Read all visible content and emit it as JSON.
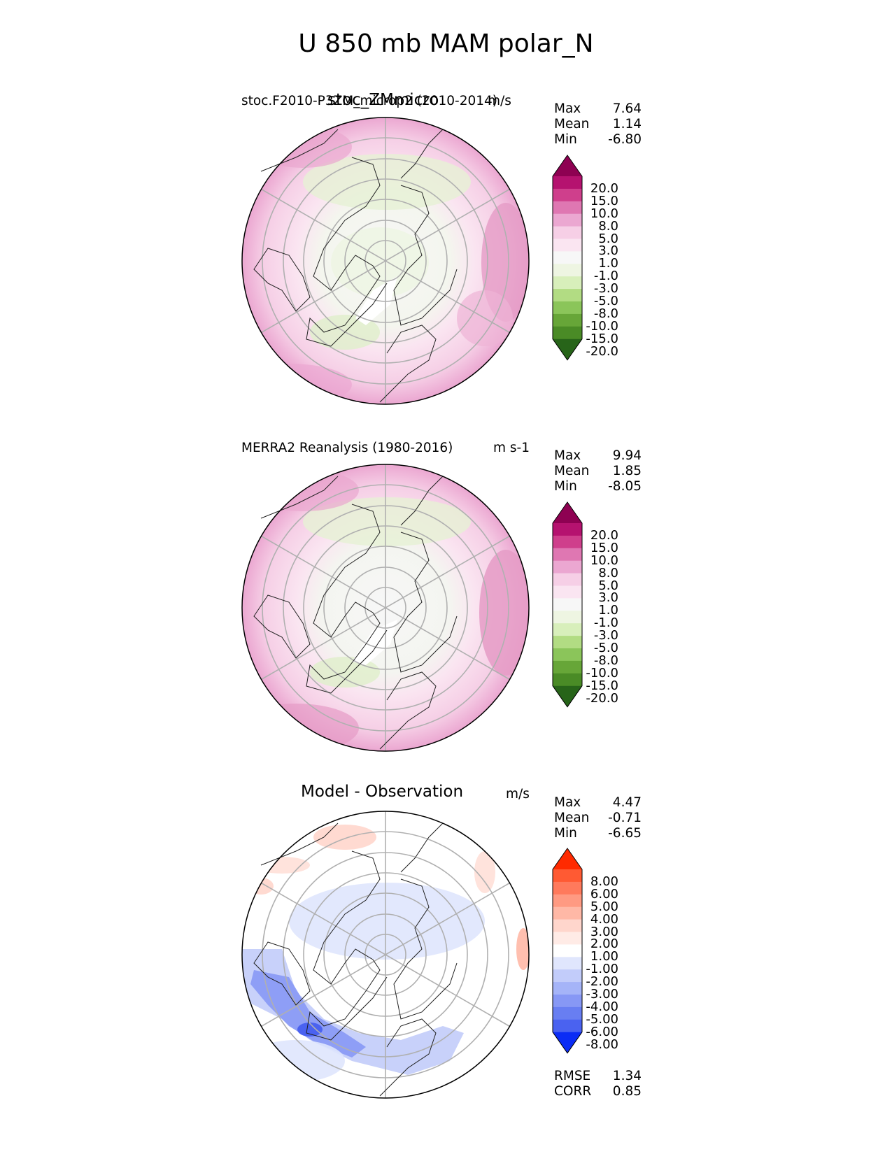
{
  "chart_data": {
    "type": "heatmap",
    "title": "U 850 mb MAM polar_N",
    "panels": [
      {
        "id": "test",
        "left_label": "stoc.F2010-P3ZM_microp2 (2010-2014)",
        "center_title": "stoc_ZMmicro",
        "units": "m/s",
        "stats": [
          [
            "Max",
            "7.64"
          ],
          [
            "Mean",
            "1.14"
          ],
          [
            "Min",
            "-6.80"
          ]
        ],
        "colorbar": {
          "levels": [
            "20.0",
            "15.0",
            "10.0",
            "8.0",
            "5.0",
            "3.0",
            "1.0",
            "-1.0",
            "-3.0",
            "-5.0",
            "-8.0",
            "-10.0",
            "-15.0",
            "-20.0"
          ],
          "colors": [
            "#8e0152",
            "#b5126f",
            "#cf3f8c",
            "#df77b2",
            "#eba7d1",
            "#f6cfe6",
            "#fae5f1",
            "#f7f7f7",
            "#eef5e2",
            "#d8efbb",
            "#b2dc83",
            "#8bc55a",
            "#67a638",
            "#4a8b26",
            "#276419"
          ]
        }
      },
      {
        "id": "ref",
        "left_label": "MERRA2 Reanalysis (1980-2016)",
        "center_title": "",
        "units": "m s-1",
        "stats": [
          [
            "Max",
            "9.94"
          ],
          [
            "Mean",
            "1.85"
          ],
          [
            "Min",
            "-8.05"
          ]
        ],
        "colorbar": {
          "levels": [
            "20.0",
            "15.0",
            "10.0",
            "8.0",
            "5.0",
            "3.0",
            "1.0",
            "-1.0",
            "-3.0",
            "-5.0",
            "-8.0",
            "-10.0",
            "-15.0",
            "-20.0"
          ],
          "colors": [
            "#8e0152",
            "#b5126f",
            "#cf3f8c",
            "#df77b2",
            "#eba7d1",
            "#f6cfe6",
            "#fae5f1",
            "#f7f7f7",
            "#eef5e2",
            "#d8efbb",
            "#b2dc83",
            "#8bc55a",
            "#67a638",
            "#4a8b26",
            "#276419"
          ]
        }
      },
      {
        "id": "diff",
        "left_label": "",
        "center_title": "Model - Observation",
        "units": "m/s",
        "stats": [
          [
            "Max",
            "4.47"
          ],
          [
            "Mean",
            "-0.71"
          ],
          [
            "Min",
            "-6.65"
          ]
        ],
        "extra_stats": [
          [
            "RMSE",
            "1.34"
          ],
          [
            "CORR",
            "0.85"
          ]
        ],
        "colorbar": {
          "levels": [
            "8.00",
            "6.00",
            "5.00",
            "4.00",
            "3.00",
            "2.00",
            "1.00",
            "-1.00",
            "-2.00",
            "-3.00",
            "-4.00",
            "-5.00",
            "-6.00",
            "-8.00"
          ],
          "colors": [
            "#ff2a00",
            "#ff5a33",
            "#ff7a5c",
            "#ff9a82",
            "#ffb8a6",
            "#ffd6cc",
            "#ffebe6",
            "#ffffff",
            "#e0e6fd",
            "#c2ccfa",
            "#a5b4f8",
            "#8798f5",
            "#687ef2",
            "#4a62f0",
            "#0b2cf5"
          ]
        }
      }
    ]
  }
}
